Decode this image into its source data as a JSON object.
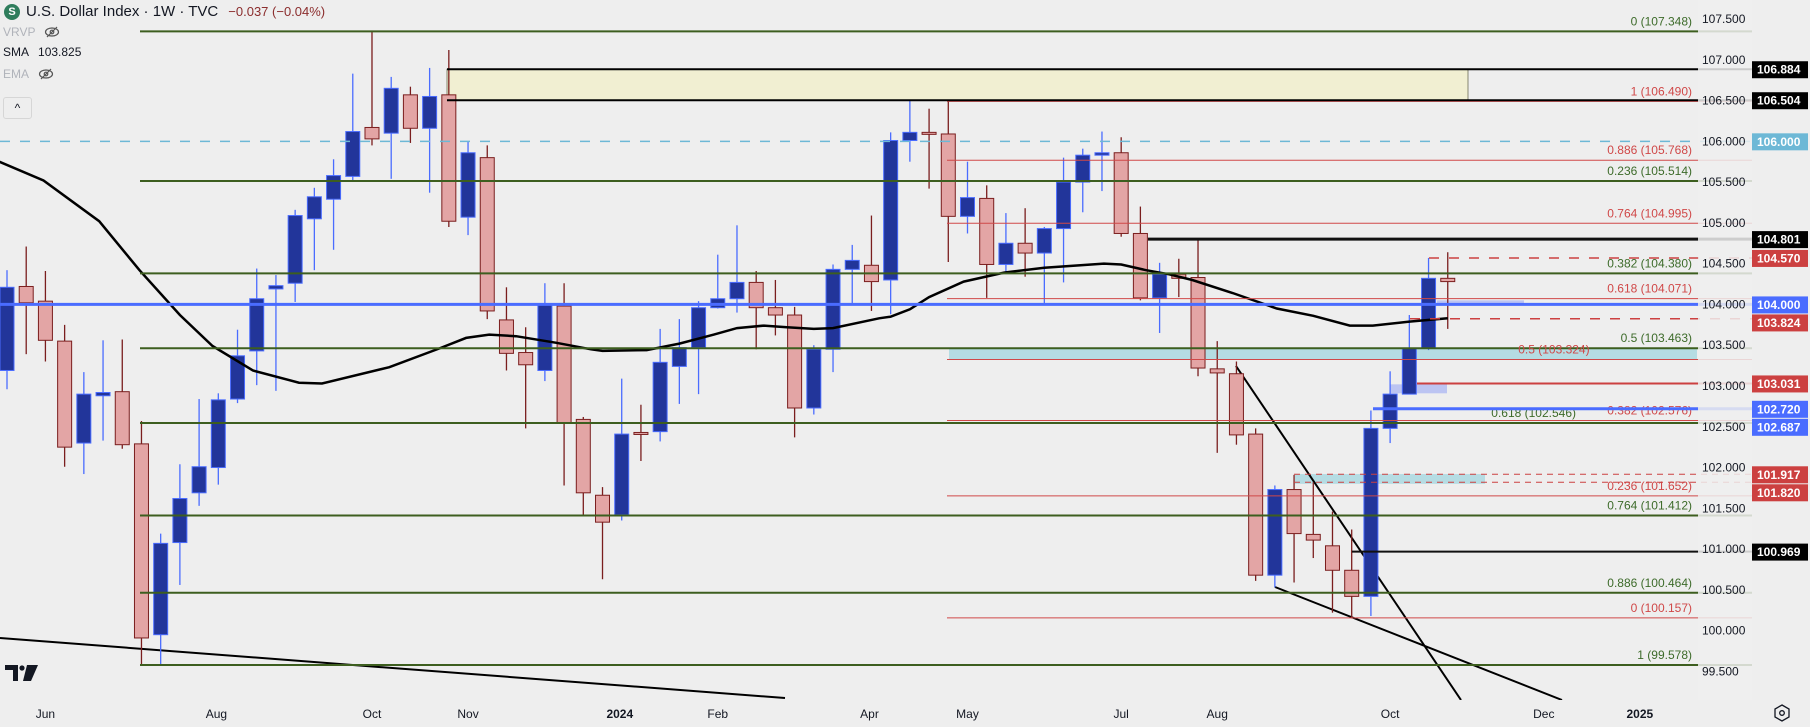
{
  "header": {
    "symbol_icon": "S",
    "title": "U.S. Dollar Index · 1W · TVC",
    "change": "−0.037 (−0.04%)"
  },
  "legend": {
    "vrvp": {
      "label": "VRVP",
      "icon": "eye-off-icon"
    },
    "sma": {
      "label": "SMA",
      "value": "103.825"
    },
    "ema": {
      "label": "EMA",
      "icon": "eye-off-icon"
    },
    "collapse_icon": "chevron-up-icon",
    "collapse_glyph": "^"
  },
  "colors": {
    "background": "#eeeeee",
    "up_fill": "#22359a",
    "up_border": "#4a6cff",
    "down_fill": "#e3a5a5",
    "down_border": "#7a1e1e",
    "fib_green": "#3d5e1f",
    "fib_red": "#d04848",
    "sma": "#000000",
    "level_blue": "#4a6cff",
    "dashed_cyan": "#6db8d6",
    "zone_yellow": "#f1efd2",
    "zone_teal": "#b5dce3",
    "zone_periwinkle": "#bcc4f2"
  },
  "chart_data": {
    "type": "candlestick",
    "title": "U.S. Dollar Index · 1W · TVC",
    "interval": "1W",
    "ylim": [
      99.2,
      107.75
    ],
    "candles_ohlc": [
      [
        103.19,
        104.42,
        102.96,
        104.21
      ],
      [
        104.22,
        104.71,
        103.39,
        104.02
      ],
      [
        104.04,
        104.41,
        103.3,
        103.56
      ],
      [
        103.55,
        103.75,
        102.01,
        102.25
      ],
      [
        102.3,
        103.17,
        101.92,
        102.9
      ],
      [
        102.88,
        103.56,
        102.33,
        102.92
      ],
      [
        102.93,
        103.57,
        102.23,
        102.28
      ],
      [
        102.29,
        102.57,
        99.58,
        99.91
      ],
      [
        99.95,
        101.19,
        99.58,
        101.07
      ],
      [
        101.08,
        102.04,
        100.56,
        101.62
      ],
      [
        101.69,
        102.84,
        101.53,
        102.01
      ],
      [
        102.0,
        102.91,
        101.79,
        102.83
      ],
      [
        102.84,
        103.69,
        102.79,
        103.37
      ],
      [
        103.43,
        104.44,
        103.01,
        104.07
      ],
      [
        104.19,
        104.36,
        102.94,
        104.23
      ],
      [
        104.26,
        105.16,
        104.03,
        105.09
      ],
      [
        105.05,
        105.43,
        104.42,
        105.32
      ],
      [
        105.29,
        105.78,
        104.67,
        105.58
      ],
      [
        105.57,
        106.83,
        105.52,
        106.12
      ],
      [
        106.17,
        107.35,
        105.95,
        106.03
      ],
      [
        106.1,
        106.79,
        105.54,
        106.65
      ],
      [
        106.57,
        106.67,
        105.98,
        106.16
      ],
      [
        106.16,
        106.9,
        105.37,
        106.55
      ],
      [
        106.57,
        107.12,
        104.95,
        105.02
      ],
      [
        105.07,
        106.0,
        104.85,
        105.86
      ],
      [
        105.8,
        105.95,
        103.82,
        103.92
      ],
      [
        103.81,
        104.21,
        103.19,
        103.4
      ],
      [
        103.41,
        103.72,
        102.48,
        103.26
      ],
      [
        103.19,
        104.26,
        103.06,
        104.01
      ],
      [
        103.98,
        104.26,
        101.78,
        102.55
      ],
      [
        102.59,
        102.62,
        101.42,
        101.69
      ],
      [
        101.66,
        101.76,
        100.63,
        101.33
      ],
      [
        101.42,
        103.09,
        101.35,
        102.41
      ],
      [
        102.43,
        102.77,
        102.08,
        102.41
      ],
      [
        102.44,
        103.7,
        102.32,
        103.29
      ],
      [
        103.24,
        103.82,
        102.78,
        103.47
      ],
      [
        103.47,
        104.04,
        102.9,
        103.96
      ],
      [
        103.96,
        104.61,
        103.95,
        104.07
      ],
      [
        104.07,
        104.97,
        103.9,
        104.27
      ],
      [
        104.27,
        104.41,
        103.45,
        103.96
      ],
      [
        103.96,
        104.3,
        103.62,
        103.87
      ],
      [
        103.87,
        103.97,
        102.37,
        102.73
      ],
      [
        102.73,
        103.5,
        102.65,
        103.45
      ],
      [
        103.45,
        104.49,
        103.17,
        104.43
      ],
      [
        104.43,
        104.73,
        104.01,
        104.54
      ],
      [
        104.48,
        105.09,
        103.92,
        104.28
      ],
      [
        104.3,
        106.11,
        103.88,
        106.01
      ],
      [
        106.01,
        106.51,
        105.75,
        106.11
      ],
      [
        106.11,
        106.4,
        105.42,
        106.09
      ],
      [
        106.09,
        106.5,
        104.52,
        105.08
      ],
      [
        105.08,
        105.75,
        104.87,
        105.31
      ],
      [
        105.3,
        105.46,
        104.08,
        104.49
      ],
      [
        104.49,
        105.12,
        104.4,
        104.75
      ],
      [
        104.75,
        105.18,
        104.34,
        104.63
      ],
      [
        104.63,
        104.95,
        104.01,
        104.93
      ],
      [
        104.93,
        105.8,
        104.27,
        105.5
      ],
      [
        105.5,
        105.91,
        105.13,
        105.83
      ],
      [
        105.83,
        106.12,
        105.39,
        105.86
      ],
      [
        105.86,
        106.05,
        104.83,
        104.87
      ],
      [
        104.87,
        105.2,
        104.05,
        104.08
      ],
      [
        104.08,
        104.51,
        103.65,
        104.37
      ],
      [
        104.37,
        104.56,
        104.09,
        104.32
      ],
      [
        104.33,
        104.8,
        103.12,
        103.22
      ],
      [
        103.21,
        103.55,
        102.18,
        103.16
      ],
      [
        103.15,
        103.3,
        102.28,
        102.4
      ],
      [
        102.41,
        102.48,
        100.61,
        100.68
      ],
      [
        100.68,
        101.78,
        100.53,
        101.73
      ],
      [
        101.73,
        101.91,
        100.59,
        101.19
      ],
      [
        101.18,
        101.82,
        100.89,
        101.11
      ],
      [
        101.04,
        101.46,
        100.22,
        100.74
      ],
      [
        100.74,
        101.24,
        100.15,
        100.42
      ],
      [
        100.42,
        102.7,
        100.18,
        102.48
      ],
      [
        102.48,
        103.18,
        102.3,
        102.9
      ],
      [
        102.9,
        103.87,
        102.9,
        103.46
      ],
      [
        103.46,
        104.57,
        103.44,
        104.32
      ],
      [
        104.32,
        104.64,
        103.7,
        104.28
      ]
    ],
    "sma_series": [
      [
        -0.4,
        105.75
      ],
      [
        1.9,
        105.52
      ],
      [
        4.8,
        105.02
      ],
      [
        6.9,
        104.42
      ],
      [
        9.0,
        103.87
      ],
      [
        10.7,
        103.49
      ],
      [
        12.8,
        103.19
      ],
      [
        15.2,
        103.04
      ],
      [
        16.4,
        103.03
      ],
      [
        19.9,
        103.23
      ],
      [
        22.5,
        103.46
      ],
      [
        23.9,
        103.59
      ],
      [
        25.1,
        103.63
      ],
      [
        26.5,
        103.61
      ],
      [
        28.6,
        103.53
      ],
      [
        30.4,
        103.45
      ],
      [
        31.0,
        103.43
      ],
      [
        33.3,
        103.44
      ],
      [
        35.0,
        103.52
      ],
      [
        36.8,
        103.63
      ],
      [
        38.0,
        103.71
      ],
      [
        39.4,
        103.74
      ],
      [
        40.6,
        103.72
      ],
      [
        42.0,
        103.7
      ],
      [
        43.0,
        103.71
      ],
      [
        45.4,
        103.83
      ],
      [
        46.0,
        103.85
      ],
      [
        47.0,
        103.94
      ],
      [
        48.0,
        104.09
      ],
      [
        49.8,
        104.28
      ],
      [
        51.9,
        104.39
      ],
      [
        54.0,
        104.45
      ],
      [
        57.1,
        104.5
      ],
      [
        58.0,
        104.49
      ],
      [
        59.3,
        104.42
      ],
      [
        60.5,
        104.37
      ],
      [
        61.7,
        104.3
      ],
      [
        63.8,
        104.14
      ],
      [
        66.1,
        103.95
      ],
      [
        68.0,
        103.86
      ],
      [
        69.9,
        103.74
      ],
      [
        71.1,
        103.74
      ],
      [
        73.0,
        103.79
      ],
      [
        75.0,
        103.83
      ]
    ],
    "price_ticks": [
      "107.500",
      "107.000",
      "106.500",
      "106.000",
      "105.500",
      "105.000",
      "104.500",
      "104.000",
      "103.500",
      "103.000",
      "102.500",
      "102.000",
      "101.500",
      "101.000",
      "100.500",
      "100.000",
      "99.500"
    ],
    "time_labels": [
      {
        "label": "Jun",
        "week": 2,
        "bold": false
      },
      {
        "label": "Aug",
        "week": 10.9,
        "bold": false
      },
      {
        "label": "Oct",
        "week": 19,
        "bold": false
      },
      {
        "label": "Nov",
        "week": 24,
        "bold": false
      },
      {
        "label": "2024",
        "week": 31.9,
        "bold": true
      },
      {
        "label": "Feb",
        "week": 37,
        "bold": false
      },
      {
        "label": "Apr",
        "week": 44.9,
        "bold": false
      },
      {
        "label": "May",
        "week": 50,
        "bold": false
      },
      {
        "label": "Jul",
        "week": 58,
        "bold": false
      },
      {
        "label": "Aug",
        "week": 63,
        "bold": false
      },
      {
        "label": "Oct",
        "week": 72,
        "bold": false
      },
      {
        "label": "Dec",
        "week": 80,
        "bold": false
      },
      {
        "label": "2025",
        "week": 85,
        "bold": true
      }
    ],
    "fib_green": [
      {
        "label": "0 (107.348)",
        "price": 107.348
      },
      {
        "label": "0.236 (105.514)",
        "price": 105.514
      },
      {
        "label": "0.382 (104.380)",
        "price": 104.38
      },
      {
        "label": "0.5 (103.463)",
        "price": 103.463
      },
      {
        "label": "0.618 (102.546)",
        "price": 102.546
      },
      {
        "label": "0.764 (101.412)",
        "price": 101.412
      },
      {
        "label": "0.886 (100.464)",
        "price": 100.464
      },
      {
        "label": "1 (99.578)",
        "price": 99.578
      }
    ],
    "fib_red": [
      {
        "label": "1 (106.490)",
        "price": 106.49
      },
      {
        "label": "0.886 (105.768)",
        "price": 105.768
      },
      {
        "label": "0.764 (104.995)",
        "price": 104.995
      },
      {
        "label": "0.618 (104.071)",
        "price": 104.071
      },
      {
        "label": "0.5 (103.324)",
        "price": 103.324
      },
      {
        "label": "0.382 (102.576)",
        "price": 102.576
      },
      {
        "label": "0.236 (101.652)",
        "price": 101.652
      },
      {
        "label": "0 (100.157)",
        "price": 100.157
      }
    ],
    "level_badges": [
      {
        "label": "106.884",
        "price": 106.884,
        "color": "#000000"
      },
      {
        "label": "106.504",
        "price": 106.504,
        "color": "#000000"
      },
      {
        "label": "106.000",
        "price": 106.0,
        "color": "#6db8d6"
      },
      {
        "label": "104.801",
        "price": 104.801,
        "color": "#000000"
      },
      {
        "label": "104.570",
        "price": 104.57,
        "color": "#cc4040"
      },
      {
        "label": "104.000",
        "price": 104.0,
        "color": "#4a6cff"
      },
      {
        "label": "103.824",
        "price": 103.824,
        "color": "#cc4040"
      },
      {
        "label": "103.031",
        "price": 103.031,
        "color": "#cc4040"
      },
      {
        "label": "102.720",
        "price": 102.72,
        "color": "#4a6cff"
      },
      {
        "label": "102.687",
        "price": 102.687,
        "color": "#4a6cff"
      },
      {
        "label": "101.917",
        "price": 101.917,
        "color": "#cc4040"
      },
      {
        "label": "101.820",
        "price": 101.82,
        "color": "#cc4040"
      },
      {
        "label": "100.969",
        "price": 100.969,
        "color": "#000000"
      }
    ]
  }
}
